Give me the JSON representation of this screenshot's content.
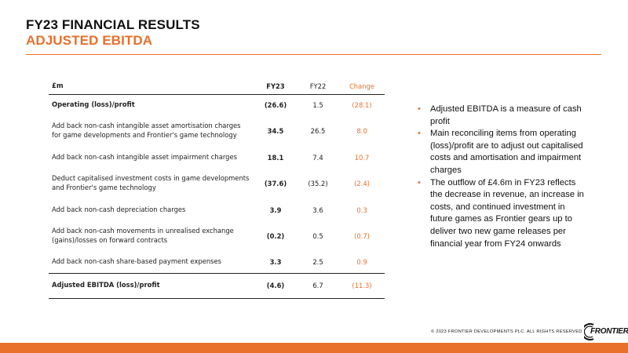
{
  "slide": {
    "title": "FY23 FINANCIAL RESULTS",
    "subtitle": "ADJUSTED EBITDA",
    "accent_color": "#e8702a"
  },
  "table": {
    "headers": {
      "label": "£m",
      "fy23": "FY23",
      "fy22": "FY22",
      "change": "Change"
    },
    "rows": [
      {
        "label": "Operating (loss)/profit",
        "fy23": "(26.6)",
        "fy22": "1.5",
        "change": "(28.1)"
      },
      {
        "label": "Add back non-cash intangible asset amortisation charges for game developments and Frontier's game technology",
        "fy23": "34.5",
        "fy22": "26.5",
        "change": "8.0"
      },
      {
        "label": "Add back non-cash intangible asset impairment charges",
        "fy23": "18.1",
        "fy22": "7.4",
        "change": "10.7"
      },
      {
        "label": "Deduct capitalised investment costs in game developments and Frontier's game technology",
        "fy23": "(37.6)",
        "fy22": "(35.2)",
        "change": "(2.4)"
      },
      {
        "label": "Add back non-cash depreciation charges",
        "fy23": "3.9",
        "fy22": "3.6",
        "change": "0.3"
      },
      {
        "label": "Add back non-cash movements in unrealised exchange (gains)/losses on forward contracts",
        "fy23": "(0.2)",
        "fy22": "0.5",
        "change": "(0.7)"
      },
      {
        "label": "Add back non-cash share-based payment expenses",
        "fy23": "3.3",
        "fy22": "2.5",
        "change": "0.9"
      }
    ],
    "total": {
      "label": "Adjusted EBITDA (loss)/profit",
      "fy23": "(4.6)",
      "fy22": "6.7",
      "change": "(11.3)"
    }
  },
  "bullets": [
    "Adjusted EBITDA is a measure of cash profit",
    "Main reconciling items from operating (loss)/profit are to adjust out  capitalised costs and amortisation and impairment charges",
    "The outflow of £4.6m in FY23 reflects the decrease in revenue, an increase in costs, and continued investment in future games as Frontier gears up to deliver two new game releases per financial year from FY24 onwards"
  ],
  "footer": {
    "copyright": "© 2023 FRONTIER DEVELOPMENTS PLC. ALL RIGHTS RESERVED",
    "logo_text": "FRONTIER"
  }
}
